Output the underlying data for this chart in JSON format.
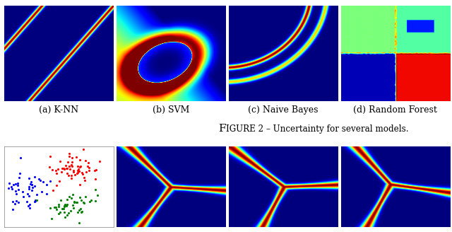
{
  "captions": [
    "(a) K-NN",
    "(b) SVM",
    "(c) Naive Bayes",
    "(d) Random Forest"
  ],
  "bg_color": "#ffffff",
  "caption_fontsize": 9,
  "title_fontsize": 11
}
